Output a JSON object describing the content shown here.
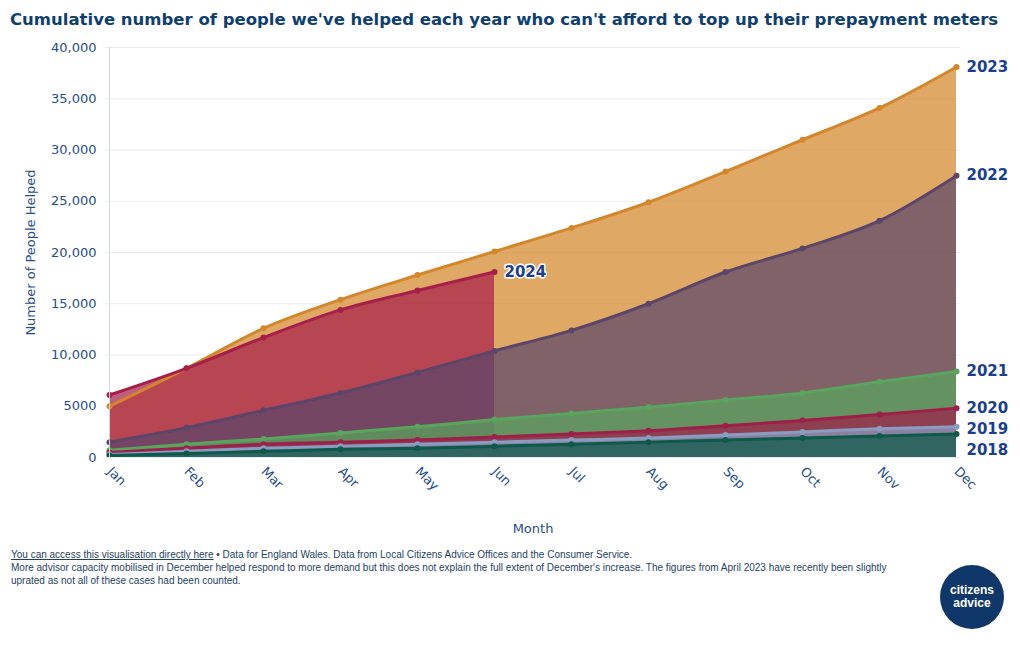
{
  "chart_data": {
    "type": "area",
    "title": "Cumulative number of people we've helped each year who can't afford to top up their prepayment meters",
    "x_label": "Month",
    "y_label": "Number of People Helped",
    "categories": [
      "Jan",
      "Feb",
      "Mar",
      "Apr",
      "May",
      "Jun",
      "Jul",
      "Aug",
      "Sep",
      "Oct",
      "Nov",
      "Dec"
    ],
    "series": [
      {
        "name": "2023",
        "color": "#d4862a",
        "values": [
          5000,
          8700,
          12600,
          15400,
          17800,
          20100,
          22400,
          24900,
          27900,
          31000,
          34100,
          38100
        ]
      },
      {
        "name": "2024",
        "color": "#a61f4b",
        "values": [
          6100,
          8700,
          11700,
          14400,
          16300,
          18100,
          null,
          null,
          null,
          null,
          null,
          null
        ]
      },
      {
        "name": "2022",
        "color": "#5b4669",
        "values": [
          1500,
          2900,
          4600,
          6300,
          8300,
          10400,
          12400,
          15000,
          18100,
          20400,
          23100,
          27500
        ]
      },
      {
        "name": "2021",
        "color": "#5aa55e",
        "values": [
          700,
          1300,
          1800,
          2400,
          3000,
          3700,
          4300,
          4900,
          5600,
          6300,
          7400,
          8400
        ]
      },
      {
        "name": "2020",
        "color": "#9e1f4a",
        "values": [
          500,
          900,
          1300,
          1500,
          1700,
          2000,
          2300,
          2600,
          3100,
          3600,
          4200,
          4800
        ]
      },
      {
        "name": "2019",
        "color": "#8a9cc2",
        "values": [
          300,
          600,
          900,
          1100,
          1300,
          1500,
          1700,
          1900,
          2200,
          2500,
          2800,
          3000
        ]
      },
      {
        "name": "2018",
        "color": "#0d5a4a",
        "values": [
          200,
          400,
          600,
          800,
          900,
          1100,
          1300,
          1500,
          1700,
          1900,
          2100,
          2300
        ]
      }
    ],
    "ylim": [
      0,
      40000
    ],
    "yticks": [
      0,
      5000,
      {
        "value": 10000,
        "label": "10,000"
      },
      {
        "value": 15000,
        "label": "15,000"
      },
      {
        "value": 20000,
        "label": "20,000"
      },
      {
        "value": 25000,
        "label": "25,000"
      },
      {
        "value": 30000,
        "label": "30,000"
      },
      {
        "value": 35000,
        "label": "35,000"
      },
      {
        "value": 40000,
        "label": "40,000"
      }
    ],
    "grid": true,
    "footer_link": "You can access this visualisation directly here",
    "footer_source": "• Data for England Wales. Data from Local Citizens Advice Offices and the Consumer Service.",
    "footer_note": "More advisor capacity mobilised in December helped respond to more demand but this does not explain the full extent of December's increase. The figures from April 2023 have recently been slightly uprated as not all of these cases had been counted.",
    "logo": "citizens advice"
  }
}
